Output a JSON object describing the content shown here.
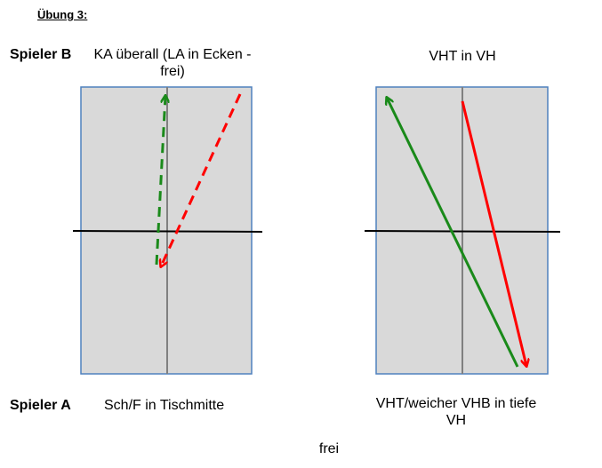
{
  "title": "Übung 3:",
  "player_b": {
    "label": "Spieler B",
    "left_task": "KA überall (LA in Ecken - frei)",
    "right_task": "VHT in VH"
  },
  "player_a": {
    "label": "Spieler A",
    "left_task": "Sch/F in Tischmitte",
    "right_task": "VHT/weicher VHB in tiefe VH"
  },
  "footer": "frei",
  "colors": {
    "table_fill": "#d9d9d9",
    "table_border": "#4f81bd",
    "center_line": "#808080",
    "net": "#000000",
    "arrow_green": "#1a8a1a",
    "arrow_red": "#ff0000"
  }
}
